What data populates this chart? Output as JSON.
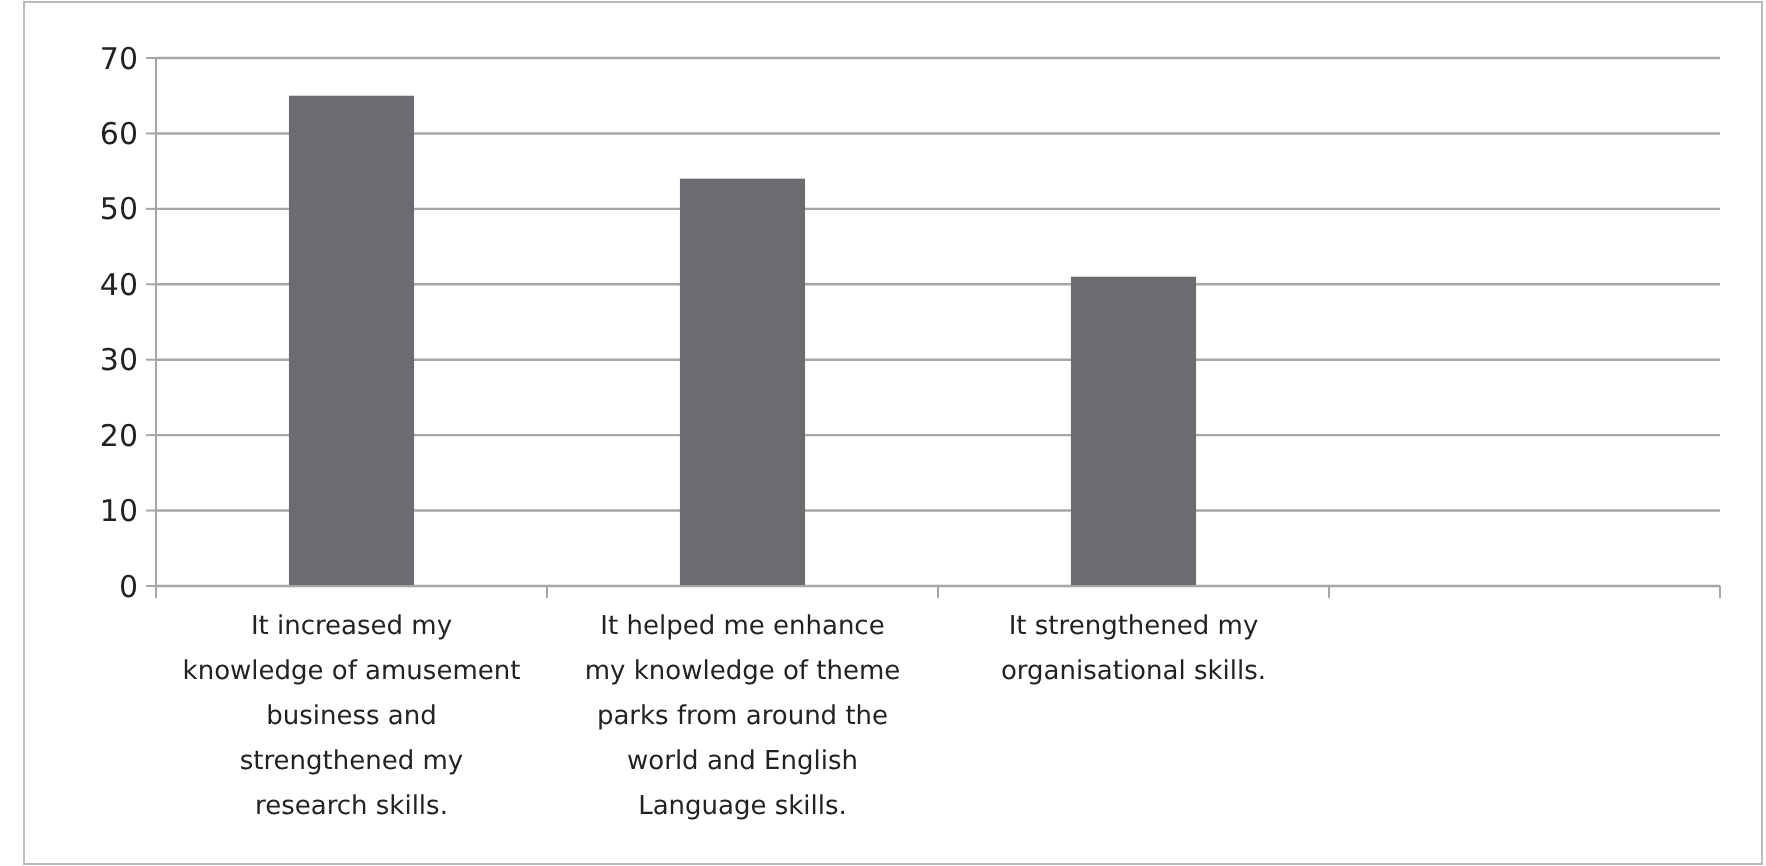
{
  "chart_data": {
    "type": "bar",
    "categories": [
      "It increased my knowledge of amusement business and strengthened my research skills.",
      "It helped me enhance my knowledge of theme parks from around the world and English Language skills.",
      "It strengthened my organisational skills.",
      null
    ],
    "values": [
      65,
      54,
      41,
      null
    ],
    "color": "#6b6c70",
    "ylim": [
      0,
      70
    ],
    "yticks": [
      0,
      10,
      20,
      30,
      40,
      50,
      60,
      70
    ],
    "grid": "y"
  }
}
